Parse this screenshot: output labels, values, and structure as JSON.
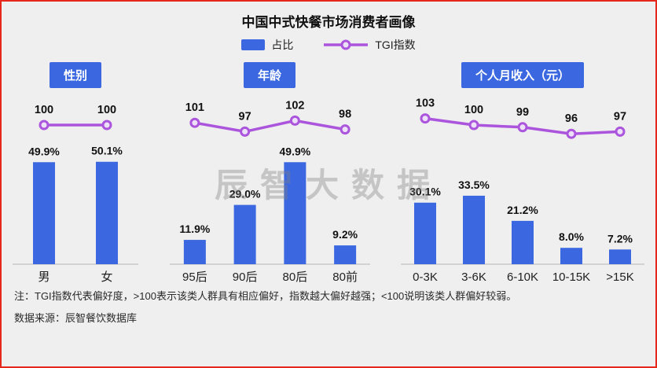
{
  "title": "中国中式快餐市场消费者画像",
  "legend": {
    "bar_label": "占比",
    "line_label": "TGI指数"
  },
  "watermark": "辰智大数据",
  "colors": {
    "bar": "#3b68e0",
    "line": "#ab55dd",
    "marker_fill": "#ede0f9",
    "header_bg": "#3b68e0",
    "header_text": "#ffffff",
    "background": "#efefef",
    "border": "#e5271d",
    "axis": "#b5b5b5"
  },
  "notes": [
    "注：TGI指数代表偏好度，>100表示该类人群具有相应偏好，指数越大偏好越强；<100说明该类人群偏好较弱。",
    "数据来源：辰智餐饮数据库"
  ],
  "chart_data": [
    {
      "type": "bar",
      "title": "性别",
      "categories": [
        "男",
        "女"
      ],
      "series": [
        {
          "name": "占比",
          "unit": "%",
          "values": [
            49.9,
            50.1
          ],
          "labels": [
            "49.9%",
            "50.1%"
          ]
        },
        {
          "name": "TGI指数",
          "values": [
            100,
            100
          ]
        }
      ],
      "legend_position": "top",
      "grid": false
    },
    {
      "type": "bar",
      "title": "年龄",
      "categories": [
        "95后",
        "90后",
        "80后",
        "80前"
      ],
      "series": [
        {
          "name": "占比",
          "unit": "%",
          "values": [
            11.9,
            29.0,
            49.9,
            9.2
          ],
          "labels": [
            "11.9%",
            "29.0%",
            "49.9%",
            "9.2%"
          ]
        },
        {
          "name": "TGI指数",
          "values": [
            101,
            97,
            102,
            98
          ]
        }
      ],
      "legend_position": "top",
      "grid": false
    },
    {
      "type": "bar",
      "title": "个人月收入（元）",
      "categories": [
        "0-3K",
        "3-6K",
        "6-10K",
        "10-15K",
        ">15K"
      ],
      "series": [
        {
          "name": "占比",
          "unit": "%",
          "values": [
            30.1,
            33.5,
            21.2,
            8.0,
            7.2
          ],
          "labels": [
            "30.1%",
            "33.5%",
            "21.2%",
            "8.0%",
            "7.2%"
          ]
        },
        {
          "name": "TGI指数",
          "values": [
            103,
            100,
            99,
            96,
            97
          ]
        }
      ],
      "legend_position": "top",
      "grid": false
    }
  ]
}
